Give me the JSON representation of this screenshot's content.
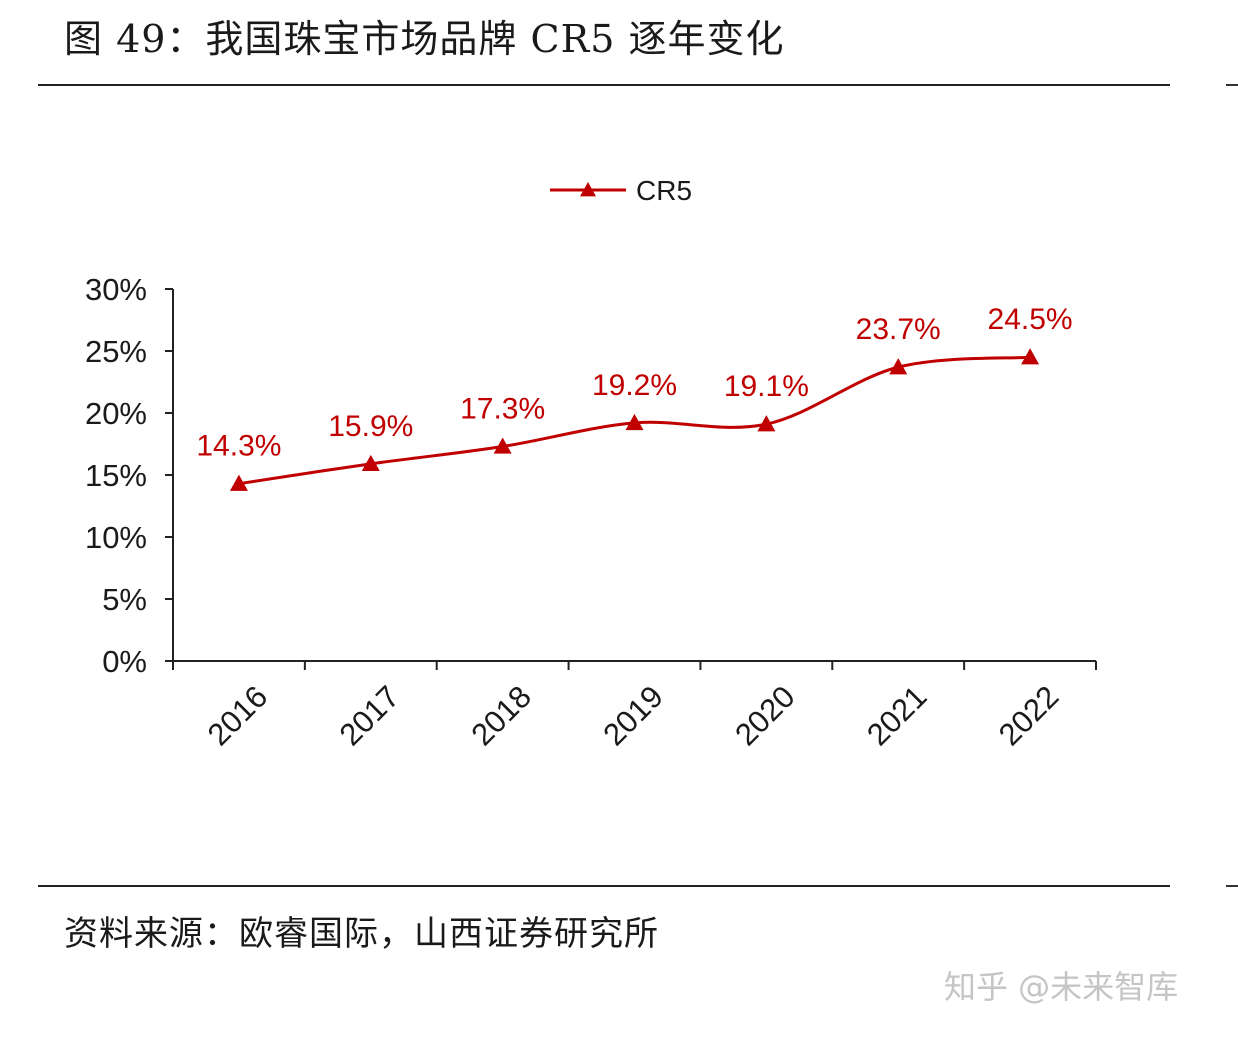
{
  "figure": {
    "title": "图 49：我国珠宝市场品牌 CR5 逐年变化",
    "source": "资料来源：欧睿国际，山西证券研究所",
    "watermark": "知乎 @未来智库"
  },
  "colors": {
    "series": "#c00000",
    "axis": "#222222",
    "text": "#1a1a1a"
  },
  "chart_data": {
    "type": "line",
    "title": "",
    "xlabel": "",
    "ylabel": "",
    "categories": [
      "2016",
      "2017",
      "2018",
      "2019",
      "2020",
      "2021",
      "2022"
    ],
    "series": [
      {
        "name": "CR5",
        "values": [
          14.3,
          15.9,
          17.3,
          19.2,
          19.1,
          23.7,
          24.5
        ],
        "labels": [
          "14.3%",
          "15.9%",
          "17.3%",
          "19.2%",
          "19.1%",
          "23.7%",
          "24.5%"
        ],
        "marker": "triangle",
        "smooth": true
      }
    ],
    "ylim": [
      0,
      30
    ],
    "yticks": [
      0,
      5,
      10,
      15,
      20,
      25,
      30
    ],
    "ytick_labels": [
      "0%",
      "5%",
      "10%",
      "15%",
      "20%",
      "25%",
      "30%"
    ],
    "legend_position": "top-center",
    "grid": false
  }
}
